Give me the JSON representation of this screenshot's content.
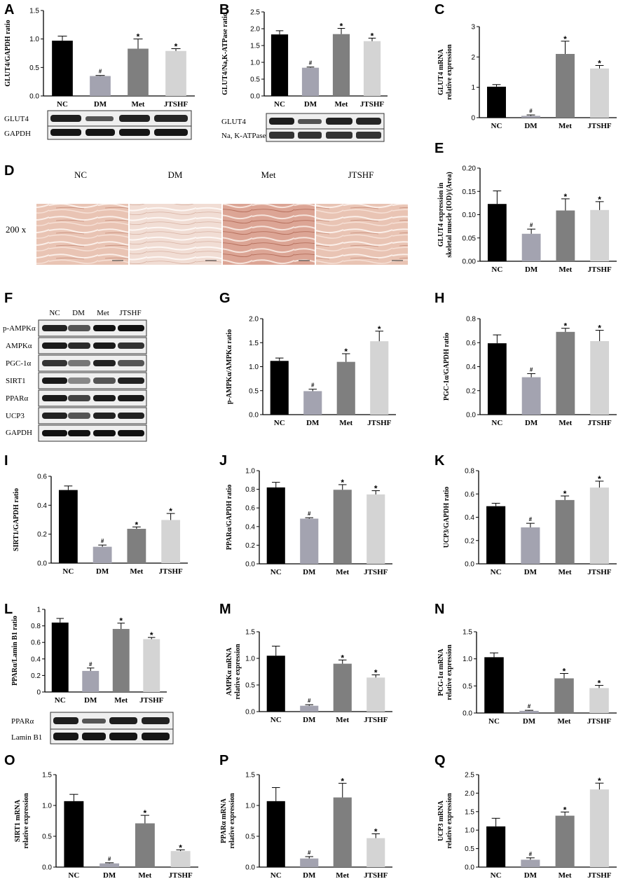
{
  "panel_letters": [
    "A",
    "B",
    "C",
    "D",
    "E",
    "F",
    "G",
    "H",
    "I",
    "J",
    "K",
    "L",
    "M",
    "N",
    "O",
    "P",
    "Q"
  ],
  "colors": {
    "NC": "#000000",
    "DM": "#a3a3b0",
    "Met": "#7f7f7f",
    "JTSHF": "#d4d4d4"
  },
  "blots": {
    "A": [
      "GLUT4",
      "GAPDH"
    ],
    "B": [
      "GLUT4",
      "Na, K-ATPase"
    ],
    "F_groups": [
      "NC",
      "DM",
      "Met",
      "JTSHF"
    ],
    "F": [
      "p-AMPKα",
      "AMPKα",
      "PGC-1α",
      "SIRT1",
      "PPARα",
      "UCP3",
      "GAPDH"
    ],
    "L": [
      "PPARα",
      "Lamin B1"
    ]
  },
  "histology": {
    "magnification": "200 x",
    "groups": [
      "NC",
      "DM",
      "Met",
      "JTSHF"
    ]
  },
  "chart_data": [
    {
      "id": "A",
      "type": "bar",
      "categories": [
        "NC",
        "DM",
        "Met",
        "JTSHF"
      ],
      "values": [
        0.97,
        0.35,
        0.83,
        0.79
      ],
      "errors": [
        0.08,
        0.01,
        0.17,
        0.04
      ],
      "marks": [
        "",
        "#",
        "*",
        "*"
      ],
      "ylabel": "GLUT4/GAPDH  ratio",
      "ylim": [
        0,
        1.5
      ],
      "yticks": [
        "0.0",
        "0.5",
        "1.0",
        "1.5"
      ]
    },
    {
      "id": "B",
      "type": "bar",
      "categories": [
        "NC",
        "DM",
        "Met",
        "JTSHF"
      ],
      "values": [
        1.83,
        0.84,
        1.84,
        1.63
      ],
      "errors": [
        0.11,
        0.02,
        0.17,
        0.09
      ],
      "marks": [
        "",
        "#",
        "*",
        "*"
      ],
      "ylabel": "GLUT4/Na,K-ATPase  ratio",
      "ylim": [
        0,
        2.5
      ],
      "yticks": [
        "0.0",
        "0.5",
        "1.0",
        "1.5",
        "2.0",
        "2.5"
      ]
    },
    {
      "id": "C",
      "type": "bar",
      "categories": [
        "NC",
        "DM",
        "Met",
        "JTSHF"
      ],
      "values": [
        1.02,
        0.06,
        2.1,
        1.62
      ],
      "errors": [
        0.07,
        0.03,
        0.42,
        0.1
      ],
      "marks": [
        "",
        "#",
        "*",
        "*"
      ],
      "ylabel": [
        "GLUT4  mRNA",
        "relative expression"
      ],
      "ylim": [
        0,
        3
      ],
      "yticks": [
        "0",
        "1",
        "2",
        "3"
      ]
    },
    {
      "id": "E",
      "type": "bar",
      "categories": [
        "NC",
        "DM",
        "Met",
        "JTSHF"
      ],
      "values": [
        0.123,
        0.059,
        0.109,
        0.11
      ],
      "errors": [
        0.028,
        0.01,
        0.025,
        0.018
      ],
      "marks": [
        "",
        "#",
        "*",
        "*"
      ],
      "ylabel": [
        "GLUT4 expression in",
        "skeletal muscle (IOD)/(Area)"
      ],
      "ylim": [
        0,
        0.2
      ],
      "yticks": [
        "0.00",
        "0.05",
        "0.10",
        "0.15",
        "0.20"
      ]
    },
    {
      "id": "G",
      "type": "bar",
      "categories": [
        "NC",
        "DM",
        "Met",
        "JTSHF"
      ],
      "values": [
        1.12,
        0.49,
        1.1,
        1.53
      ],
      "errors": [
        0.06,
        0.04,
        0.17,
        0.21
      ],
      "marks": [
        "",
        "#",
        "*",
        "*"
      ],
      "ylabel": "p-AMPKα/AMPKα  ratio",
      "ylim": [
        0,
        2
      ],
      "yticks": [
        "0.0",
        "0.5",
        "1.0",
        "1.5",
        "2.0"
      ]
    },
    {
      "id": "H",
      "type": "bar",
      "categories": [
        "NC",
        "DM",
        "Met",
        "JTSHF"
      ],
      "values": [
        0.595,
        0.312,
        0.69,
        0.613
      ],
      "errors": [
        0.07,
        0.03,
        0.03,
        0.09
      ],
      "marks": [
        "",
        "#",
        "*",
        "*"
      ],
      "ylabel": "PGC-1α/GAPDH  ratio",
      "ylim": [
        0,
        0.8
      ],
      "yticks": [
        "0.0",
        "0.2",
        "0.4",
        "0.6",
        "0.8"
      ]
    },
    {
      "id": "I",
      "type": "bar",
      "categories": [
        "NC",
        "DM",
        "Met",
        "JTSHF"
      ],
      "values": [
        0.505,
        0.113,
        0.237,
        0.298
      ],
      "errors": [
        0.028,
        0.012,
        0.013,
        0.045
      ],
      "marks": [
        "",
        "#",
        "*",
        "*"
      ],
      "ylabel": "SIRT1/GAPDH  ratio",
      "ylim": [
        0,
        0.6
      ],
      "yticks": [
        "0.0",
        "0.2",
        "0.4",
        "0.6"
      ]
    },
    {
      "id": "J",
      "type": "bar",
      "categories": [
        "NC",
        "DM",
        "Met",
        "JTSHF"
      ],
      "values": [
        0.82,
        0.485,
        0.795,
        0.745
      ],
      "errors": [
        0.055,
        0.01,
        0.055,
        0.04
      ],
      "marks": [
        "",
        "#",
        "*",
        "*"
      ],
      "ylabel": "PPARα/GAPDH  ratio",
      "ylim": [
        0,
        1
      ],
      "yticks": [
        "0.0",
        "0.2",
        "0.4",
        "0.6",
        "0.8",
        "1.0"
      ]
    },
    {
      "id": "K",
      "type": "bar",
      "categories": [
        "NC",
        "DM",
        "Met",
        "JTSHF"
      ],
      "values": [
        0.495,
        0.313,
        0.548,
        0.655
      ],
      "errors": [
        0.025,
        0.035,
        0.035,
        0.055
      ],
      "marks": [
        "",
        "#",
        "*",
        "*"
      ],
      "ylabel": "UCP3/GAPDH  ratio",
      "ylim": [
        0,
        0.8
      ],
      "yticks": [
        "0.0",
        "0.2",
        "0.4",
        "0.6",
        "0.8"
      ]
    },
    {
      "id": "L",
      "type": "bar",
      "categories": [
        "NC",
        "DM",
        "Met",
        "JTSHF"
      ],
      "values": [
        0.84,
        0.255,
        0.763,
        0.64
      ],
      "errors": [
        0.05,
        0.035,
        0.07,
        0.02
      ],
      "marks": [
        "",
        "#",
        "*",
        "*"
      ],
      "ylabel": "PPARα/Lamin B1  ratio",
      "ylim": [
        0,
        1
      ],
      "yticks": [
        "0",
        "0.2",
        "0.4",
        "0.6",
        "0.8",
        "1"
      ]
    },
    {
      "id": "M",
      "type": "bar",
      "categories": [
        "NC",
        "DM",
        "Met",
        "JTSHF"
      ],
      "values": [
        1.05,
        0.11,
        0.9,
        0.64
      ],
      "errors": [
        0.18,
        0.02,
        0.07,
        0.05
      ],
      "marks": [
        "",
        "#",
        "*",
        "*"
      ],
      "ylabel": [
        "AMPKα  mRNA",
        "relative expression"
      ],
      "ylim": [
        0,
        1.5
      ],
      "yticks": [
        "0.0",
        "0.5",
        "1.0",
        "1.5"
      ]
    },
    {
      "id": "N",
      "type": "bar",
      "categories": [
        "NC",
        "DM",
        "Met",
        "JTSHF"
      ],
      "values": [
        1.03,
        0.04,
        0.64,
        0.46
      ],
      "errors": [
        0.08,
        0.01,
        0.09,
        0.05
      ],
      "marks": [
        "",
        "#",
        "*",
        "*"
      ],
      "ylabel": [
        "PCG-1α  mRNA",
        "relative expression"
      ],
      "ylim": [
        0,
        1.5
      ],
      "yticks": [
        "0.0",
        "0.5",
        "1.0",
        "1.5"
      ]
    },
    {
      "id": "O",
      "type": "bar",
      "categories": [
        "NC",
        "DM",
        "Met",
        "JTSHF"
      ],
      "values": [
        1.07,
        0.06,
        0.71,
        0.26
      ],
      "errors": [
        0.11,
        0.01,
        0.13,
        0.02
      ],
      "marks": [
        "",
        "#",
        "*",
        "*"
      ],
      "ylabel": [
        "SIRT1  mRNA",
        "relative expression"
      ],
      "ylim": [
        0,
        1.5
      ],
      "yticks": [
        "0.0",
        "0.5",
        "1.0",
        "1.5"
      ]
    },
    {
      "id": "P",
      "type": "bar",
      "categories": [
        "NC",
        "DM",
        "Met",
        "JTSHF"
      ],
      "values": [
        1.07,
        0.14,
        1.13,
        0.47
      ],
      "errors": [
        0.22,
        0.03,
        0.23,
        0.07
      ],
      "marks": [
        "",
        "#",
        "*",
        "*"
      ],
      "ylabel": [
        "PPARα  mRNA",
        "relative expression"
      ],
      "ylim": [
        0,
        1.5
      ],
      "yticks": [
        "0.0",
        "0.5",
        "1.0",
        "1.5"
      ]
    },
    {
      "id": "Q",
      "type": "bar",
      "categories": [
        "NC",
        "DM",
        "Met",
        "JTSHF"
      ],
      "values": [
        1.1,
        0.2,
        1.39,
        2.1
      ],
      "errors": [
        0.22,
        0.05,
        0.1,
        0.17
      ],
      "marks": [
        "",
        "#",
        "*",
        "*"
      ],
      "ylabel": [
        "UCP3  mRNA",
        "relative expression"
      ],
      "ylim": [
        0,
        2.5
      ],
      "yticks": [
        "0.0",
        "0.5",
        "1.0",
        "1.5",
        "2.0",
        "2.5"
      ]
    }
  ]
}
